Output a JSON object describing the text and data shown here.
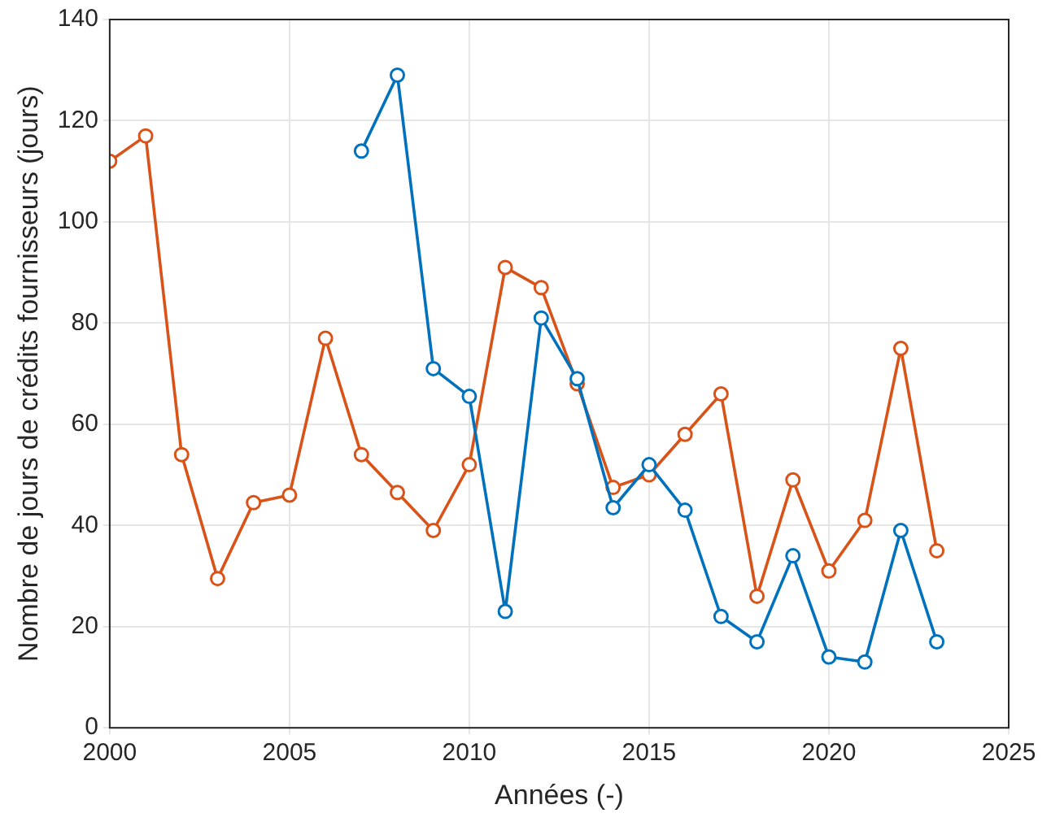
{
  "chart_data": {
    "type": "line",
    "xlabel": "Années (-)",
    "ylabel": "Nombre de jours de crédits fournisseurs (jours)",
    "xlim": [
      2000,
      2025
    ],
    "xticks": [
      2000,
      2005,
      2010,
      2015,
      2020,
      2025
    ],
    "ylim": [
      0,
      140
    ],
    "yticks": [
      0,
      20,
      40,
      60,
      80,
      100,
      120,
      140
    ],
    "grid": true,
    "marker": "circle",
    "line_style": "solid",
    "series": [
      {
        "color": "#0072bd",
        "x": [
          2007,
          2008,
          2009,
          2010,
          2011,
          2012,
          2013,
          2014,
          2015,
          2016,
          2017,
          2018,
          2019,
          2020,
          2021,
          2022,
          2023
        ],
        "values": [
          114,
          129,
          71,
          65.5,
          23,
          81,
          69,
          43.5,
          52,
          43,
          22,
          17,
          34,
          14,
          13,
          39,
          17
        ]
      },
      {
        "color": "#d95319",
        "x": [
          2000,
          2001,
          2002,
          2003,
          2004,
          2005,
          2006,
          2007,
          2008,
          2009,
          2010,
          2011,
          2012,
          2013,
          2014,
          2015,
          2016,
          2017,
          2018,
          2019,
          2020,
          2021,
          2022,
          2023
        ],
        "values": [
          112,
          117,
          54,
          29.5,
          44.5,
          46,
          77,
          54,
          46.5,
          39,
          52,
          91,
          87,
          68,
          47.5,
          50,
          58,
          66,
          26,
          49,
          31,
          41,
          75,
          35
        ]
      }
    ]
  }
}
